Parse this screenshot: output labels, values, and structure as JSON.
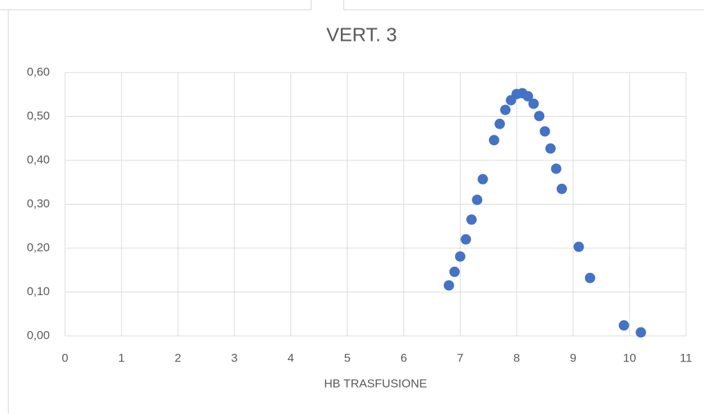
{
  "chart_data": {
    "type": "scatter",
    "title": "VERT. 3",
    "x_label": "HB TRASFUSIONE",
    "series": [
      {
        "color": "#4472c4",
        "x": [
          6.8,
          6.9,
          7.0,
          7.1,
          7.2,
          7.3,
          7.4,
          7.6,
          7.7,
          7.8,
          7.9,
          8.0,
          8.1,
          8.2,
          8.3,
          8.4,
          8.5,
          8.6,
          8.7,
          8.8,
          9.1,
          9.3,
          9.9,
          10.2
        ],
        "values": [
          0.115,
          0.146,
          0.181,
          0.22,
          0.265,
          0.31,
          0.357,
          0.446,
          0.483,
          0.515,
          0.537,
          0.551,
          0.553,
          0.546,
          0.529,
          0.501,
          0.466,
          0.427,
          0.381,
          0.335,
          0.203,
          0.132,
          0.024,
          0.008
        ]
      }
    ],
    "xlim": [
      0,
      11
    ],
    "xticks": [
      0,
      1,
      2,
      3,
      4,
      5,
      6,
      7,
      8,
      9,
      10,
      11
    ],
    "ylim": [
      0,
      0.6
    ],
    "yticks": [
      {
        "value": 0,
        "label": "0,00"
      },
      {
        "value": 0.1,
        "label": "0,10"
      },
      {
        "value": 0.2,
        "label": "0,20"
      },
      {
        "value": 0.3,
        "label": "0,30"
      },
      {
        "value": 0.4,
        "label": "0,40"
      },
      {
        "value": 0.5,
        "label": "0,50"
      },
      {
        "value": 0.6,
        "label": "0,60"
      }
    ],
    "grid": true
  }
}
